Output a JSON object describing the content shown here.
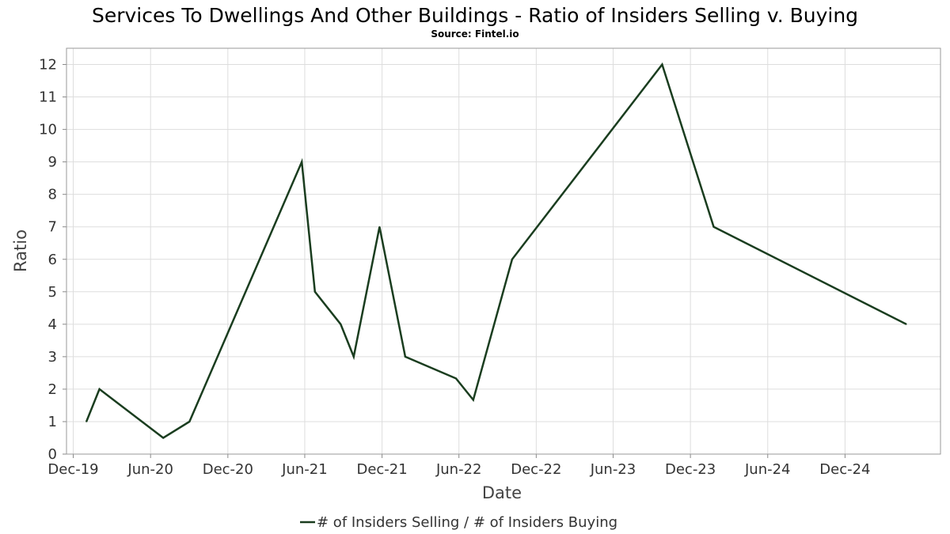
{
  "chart_data": {
    "type": "line",
    "title": "Services To Dwellings And Other Buildings - Ratio of Insiders Selling v. Buying",
    "subtitle": "Source: Fintel.io",
    "xlabel": "Date",
    "ylabel": "Ratio",
    "x_range": [
      "2019-11-15",
      "2025-07-15"
    ],
    "x_ticks": [
      {
        "date": "2019-12-01",
        "label": "Dec-19"
      },
      {
        "date": "2020-06-01",
        "label": "Jun-20"
      },
      {
        "date": "2020-12-01",
        "label": "Dec-20"
      },
      {
        "date": "2021-06-01",
        "label": "Jun-21"
      },
      {
        "date": "2021-12-01",
        "label": "Dec-21"
      },
      {
        "date": "2022-06-01",
        "label": "Jun-22"
      },
      {
        "date": "2022-12-01",
        "label": "Dec-22"
      },
      {
        "date": "2023-06-01",
        "label": "Jun-23"
      },
      {
        "date": "2023-12-01",
        "label": "Dec-23"
      },
      {
        "date": "2024-06-01",
        "label": "Jun-24"
      },
      {
        "date": "2024-12-01",
        "label": "Dec-24"
      }
    ],
    "ylim": [
      0,
      12.5
    ],
    "y_ticks": [
      0,
      1,
      2,
      3,
      4,
      5,
      6,
      7,
      8,
      9,
      10,
      11,
      12
    ],
    "grid": true,
    "legend_position": "bottom-center",
    "series": [
      {
        "name": "# of Insiders Selling / # of Insiders Buying",
        "color": "#1a3d1f",
        "points": [
          {
            "x": "2020-01-01",
            "y": 1
          },
          {
            "x": "2020-02-01",
            "y": 2
          },
          {
            "x": "2020-07-01",
            "y": 0.5
          },
          {
            "x": "2020-09-01",
            "y": 1
          },
          {
            "x": "2021-05-25",
            "y": 9
          },
          {
            "x": "2021-06-25",
            "y": 5
          },
          {
            "x": "2021-08-25",
            "y": 4
          },
          {
            "x": "2021-09-25",
            "y": 3
          },
          {
            "x": "2021-11-25",
            "y": 7
          },
          {
            "x": "2022-01-25",
            "y": 3
          },
          {
            "x": "2022-05-25",
            "y": 2.33
          },
          {
            "x": "2022-07-05",
            "y": 1.67
          },
          {
            "x": "2022-10-05",
            "y": 6
          },
          {
            "x": "2023-09-25",
            "y": 12
          },
          {
            "x": "2024-01-25",
            "y": 7
          },
          {
            "x": "2025-04-25",
            "y": 4
          }
        ]
      }
    ]
  }
}
